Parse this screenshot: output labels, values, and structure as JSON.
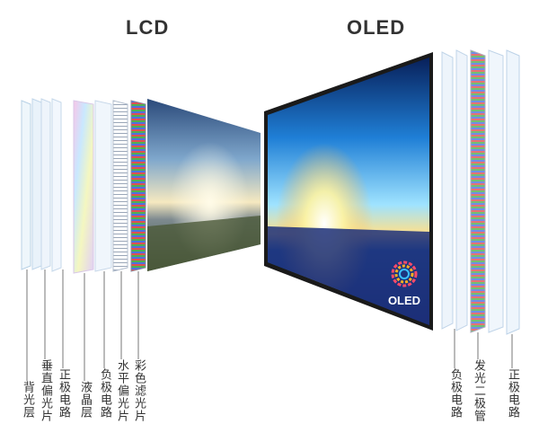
{
  "titles": {
    "lcd": "LCD",
    "oled": "OLED"
  },
  "lcd_layers": [
    {
      "label": "背光层"
    },
    {
      "label": "垂直偏光片"
    },
    {
      "label": "正极电路"
    },
    {
      "label": "液晶层"
    },
    {
      "label": "负极电路"
    },
    {
      "label": "水平偏光片"
    },
    {
      "label": "彩色滤光片"
    }
  ],
  "oled_layers": [
    {
      "label": "负极电路"
    },
    {
      "label": "发光二极管"
    },
    {
      "label": "正极电路"
    }
  ],
  "oled_logo_text": "OLED"
}
